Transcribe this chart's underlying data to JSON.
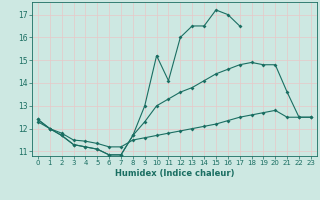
{
  "title": "",
  "xlabel": "Humidex (Indice chaleur)",
  "ylabel": "",
  "xlim": [
    -0.5,
    23.5
  ],
  "ylim": [
    10.8,
    17.55
  ],
  "yticks": [
    11,
    12,
    13,
    14,
    15,
    16,
    17
  ],
  "xticks": [
    0,
    1,
    2,
    3,
    4,
    5,
    6,
    7,
    8,
    9,
    10,
    11,
    12,
    13,
    14,
    15,
    16,
    17,
    18,
    19,
    20,
    21,
    22,
    23
  ],
  "bg_color": "#cde8e2",
  "grid_color": "#b8d8d0",
  "line_color": "#1a6e62",
  "lines": [
    {
      "x": [
        0,
        1,
        2,
        3,
        4,
        5,
        6,
        7,
        8,
        9,
        10,
        11,
        12,
        13,
        14,
        15,
        16,
        17,
        18,
        19,
        20,
        21,
        22,
        23
      ],
      "y": [
        12.4,
        12.0,
        11.7,
        11.3,
        11.2,
        11.1,
        10.85,
        10.85,
        11.7,
        13.0,
        15.2,
        14.1,
        16.0,
        16.5,
        16.5,
        17.2,
        17.0,
        16.5,
        null,
        null,
        null,
        null,
        null,
        null
      ]
    },
    {
      "x": [
        0,
        1,
        2,
        3,
        4,
        5,
        6,
        7,
        8,
        9,
        10,
        11,
        12,
        13,
        14,
        15,
        16,
        17,
        18,
        19,
        20,
        21,
        22,
        23
      ],
      "y": [
        12.4,
        12.0,
        11.7,
        11.3,
        11.2,
        11.1,
        10.85,
        10.85,
        11.7,
        12.3,
        13.0,
        13.3,
        13.6,
        13.8,
        14.1,
        14.4,
        14.6,
        14.8,
        14.9,
        14.8,
        14.8,
        13.6,
        12.5,
        12.5
      ]
    },
    {
      "x": [
        0,
        1,
        2,
        3,
        4,
        5,
        6,
        7,
        8,
        9,
        10,
        11,
        12,
        13,
        14,
        15,
        16,
        17,
        18,
        19,
        20,
        21,
        22,
        23
      ],
      "y": [
        12.3,
        12.0,
        11.8,
        11.5,
        11.45,
        11.35,
        11.2,
        11.2,
        11.5,
        11.6,
        11.7,
        11.8,
        11.9,
        12.0,
        12.1,
        12.2,
        12.35,
        12.5,
        12.6,
        12.7,
        12.8,
        12.5,
        12.5,
        12.5
      ]
    }
  ]
}
